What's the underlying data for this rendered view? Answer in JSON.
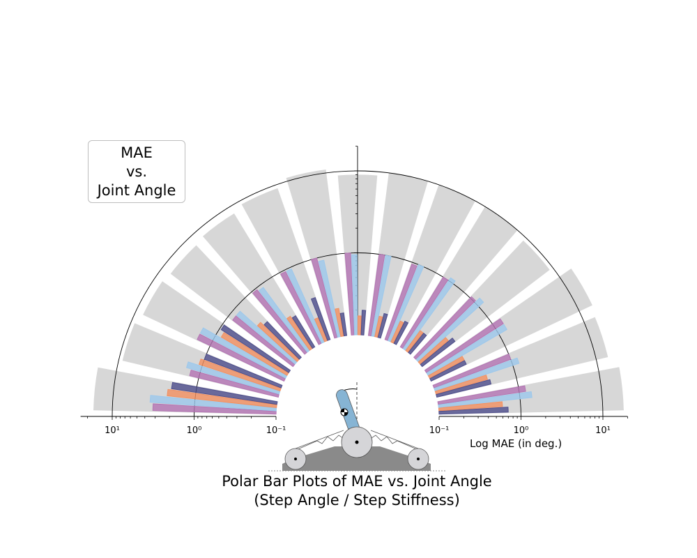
{
  "legend_box": {
    "line1": "MAE",
    "line2": "vs.",
    "line3": "Joint Angle"
  },
  "caption": {
    "line1": "Polar Bar Plots of MAE vs. Joint Angle",
    "line2": "(Step Angle / Step Stiffness)"
  },
  "chart_data": {
    "type": "bar",
    "layout": "polar-semicircle",
    "xlabel": "Log MAE (in deg.)",
    "scale": "log",
    "rlim": [
      0.1,
      20
    ],
    "left_tick_labels": [
      "10¹",
      "10⁰",
      "10⁻¹"
    ],
    "right_tick_labels": [
      "10⁻¹",
      "10⁰",
      "10¹"
    ],
    "tick_values": [
      0.1,
      1,
      10
    ],
    "colors": {
      "purple": "#b474b4",
      "light_blue": "#9cc8ec",
      "orange": "#f39060",
      "navy": "#4e4e8c",
      "gray": "#d7d7d7",
      "steel_blue": "#86b4d4"
    },
    "groups": [
      {
        "gray_bg": 17,
        "bars": [
          {
            "c": "purple",
            "v": 3.2
          },
          {
            "c": "light_blue",
            "v": 3.5
          },
          {
            "c": "orange",
            "v": 2.2
          },
          {
            "c": "navy",
            "v": 2.0
          }
        ]
      },
      {
        "gray_bg": 9,
        "bars": [
          {
            "c": "purple",
            "v": 1.3
          },
          {
            "c": "light_blue",
            "v": 1.5
          },
          {
            "c": "orange",
            "v": 1.1
          },
          {
            "c": "navy",
            "v": 1.0
          }
        ]
      },
      {
        "gray_bg": 8,
        "bars": [
          {
            "c": "purple",
            "v": 1.5
          },
          {
            "c": "light_blue",
            "v": 1.5
          },
          {
            "c": "orange",
            "v": 0.85
          },
          {
            "c": "navy",
            "v": 0.95
          }
        ]
      },
      {
        "gray_bg": 7.5,
        "bars": [
          {
            "c": "purple",
            "v": 0.85
          },
          {
            "c": "light_blue",
            "v": 0.85
          },
          {
            "c": "orange",
            "v": 0.45
          },
          {
            "c": "navy",
            "v": 0.4
          }
        ]
      },
      {
        "gray_bg": 8,
        "bars": [
          {
            "c": "purple",
            "v": 0.95
          },
          {
            "c": "light_blue",
            "v": 0.9
          },
          {
            "c": "orange",
            "v": 0.3
          },
          {
            "c": "navy",
            "v": 0.28
          }
        ]
      },
      {
        "gray_bg": 9,
        "bars": [
          {
            "c": "purple",
            "v": 0.95
          },
          {
            "c": "light_blue",
            "v": 0.95
          },
          {
            "c": "orange",
            "v": 0.2
          },
          {
            "c": "navy",
            "v": 0.35
          }
        ]
      },
      {
        "gray_bg": 11,
        "bars": [
          {
            "c": "purple",
            "v": 1.0
          },
          {
            "c": "light_blue",
            "v": 0.9
          },
          {
            "c": "orange",
            "v": 0.22
          },
          {
            "c": "navy",
            "v": 0.19
          }
        ]
      },
      {
        "gray_bg": 9,
        "bars": [
          {
            "c": "purple",
            "v": 1.0
          },
          {
            "c": "light_blue",
            "v": 0.95
          },
          {
            "c": "orange",
            "v": 0.17
          },
          {
            "c": "navy",
            "v": 0.2
          }
        ]
      },
      {
        "gray_bg": 10,
        "bars": [
          {
            "c": "purple",
            "v": 1.0
          },
          {
            "c": "light_blue",
            "v": 1.0
          },
          {
            "c": "orange",
            "v": 0.18
          },
          {
            "c": "navy",
            "v": 0.2
          }
        ]
      },
      {
        "gray_bg": 10,
        "bars": [
          {
            "c": "purple",
            "v": 0.95
          },
          {
            "c": "light_blue",
            "v": 1.0
          },
          {
            "c": "orange",
            "v": 0.19
          },
          {
            "c": "navy",
            "v": 0.2
          }
        ]
      },
      {
        "gray_bg": 10,
        "bars": [
          {
            "c": "purple",
            "v": 1.0
          },
          {
            "c": "light_blue",
            "v": 1.1
          },
          {
            "c": "orange",
            "v": 0.2
          },
          {
            "c": "navy",
            "v": 0.2
          }
        ]
      },
      {
        "gray_bg": 9,
        "bars": [
          {
            "c": "purple",
            "v": 1.05
          },
          {
            "c": "light_blue",
            "v": 1.2
          },
          {
            "c": "orange",
            "v": 0.28
          },
          {
            "c": "navy",
            "v": 0.32
          }
        ]
      },
      {
        "gray_bg": 15,
        "bars": [
          {
            "c": "purple",
            "v": 1.3
          },
          {
            "c": "light_blue",
            "v": 1.3
          },
          {
            "c": "orange",
            "v": 0.3
          },
          {
            "c": "navy",
            "v": 0.3
          }
        ]
      },
      {
        "gray_bg": 14,
        "bars": [
          {
            "c": "purple",
            "v": 1.0
          },
          {
            "c": "light_blue",
            "v": 1.2
          },
          {
            "c": "orange",
            "v": 0.45
          },
          {
            "c": "navy",
            "v": 0.48
          }
        ]
      },
      {
        "gray_bg": 18,
        "bars": [
          {
            "c": "purple",
            "v": 1.2
          },
          {
            "c": "light_blue",
            "v": 1.4
          },
          {
            "c": "orange",
            "v": 0.6
          },
          {
            "c": "navy",
            "v": 0.7
          }
        ]
      }
    ]
  }
}
